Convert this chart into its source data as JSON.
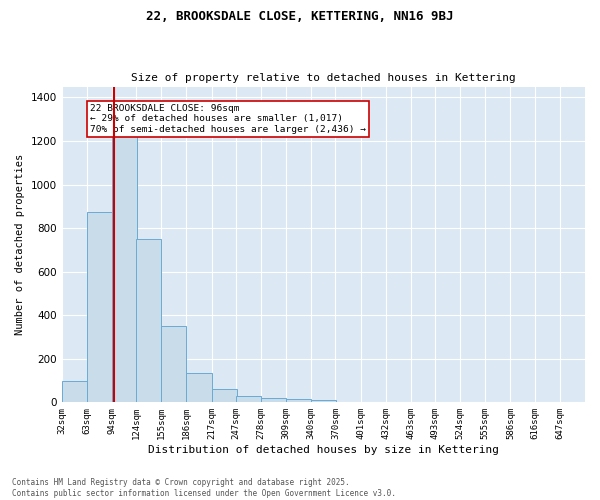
{
  "title1": "22, BROOKSDALE CLOSE, KETTERING, NN16 9BJ",
  "title2": "Size of property relative to detached houses in Kettering",
  "xlabel": "Distribution of detached houses by size in Kettering",
  "ylabel": "Number of detached properties",
  "bar_color": "#c9dcea",
  "bar_edgecolor": "#6aaad4",
  "vline_color": "#cc0000",
  "vline_x": 96,
  "background_color": "#dce9f5",
  "grid_color": "#ffffff",
  "categories": [
    "32sqm",
    "63sqm",
    "94sqm",
    "124sqm",
    "155sqm",
    "186sqm",
    "217sqm",
    "247sqm",
    "278sqm",
    "309sqm",
    "340sqm",
    "370sqm",
    "401sqm",
    "432sqm",
    "463sqm",
    "493sqm",
    "524sqm",
    "555sqm",
    "586sqm",
    "616sqm",
    "647sqm"
  ],
  "bin_edges": [
    32,
    63,
    94,
    124,
    155,
    186,
    217,
    247,
    278,
    309,
    340,
    370,
    401,
    432,
    463,
    493,
    524,
    555,
    586,
    616,
    647
  ],
  "values": [
    100,
    875,
    1350,
    750,
    350,
    135,
    60,
    28,
    20,
    15,
    10,
    0,
    0,
    0,
    0,
    0,
    0,
    0,
    0,
    0,
    0
  ],
  "ylim": [
    0,
    1450
  ],
  "yticks": [
    0,
    200,
    400,
    600,
    800,
    1000,
    1200,
    1400
  ],
  "annotation_text": "22 BROOKSDALE CLOSE: 96sqm\n← 29% of detached houses are smaller (1,017)\n70% of semi-detached houses are larger (2,436) →",
  "footer_line1": "Contains HM Land Registry data © Crown copyright and database right 2025.",
  "footer_line2": "Contains public sector information licensed under the Open Government Licence v3.0."
}
